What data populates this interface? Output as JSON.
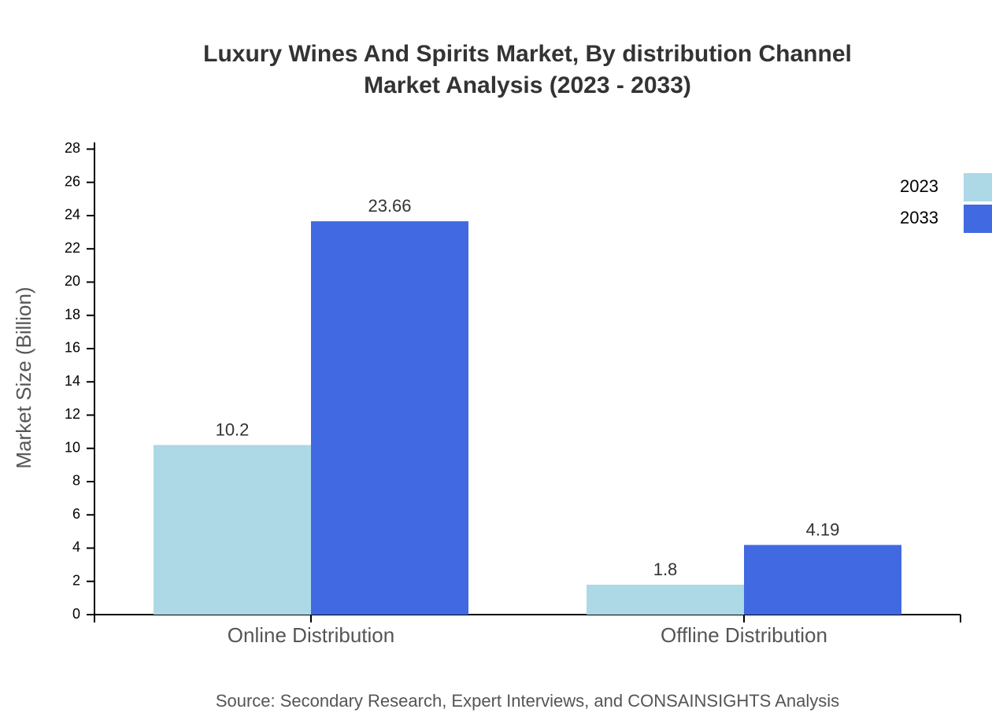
{
  "chart_data": {
    "type": "bar",
    "title": [
      "Luxury Wines And Spirits Market, By distribution Channel",
      "Market Analysis (2023 - 2033)"
    ],
    "y_label": "Market Size (Billion)",
    "source": "Source: Secondary Research, Expert Interviews, and CONSAINSIGHTS Analysis",
    "categories": [
      "Online Distribution",
      "Offline Distribution"
    ],
    "series": [
      {
        "name": "2023",
        "color": "#add8e6",
        "values": [
          10.2,
          1.8
        ]
      },
      {
        "name": "2033",
        "color": "#4169e1",
        "values": [
          23.66,
          4.19
        ]
      }
    ],
    "ylim": [
      0,
      28.4
    ],
    "yticks": [
      0,
      2,
      4,
      6,
      8,
      10,
      12,
      14,
      16,
      18,
      20,
      22,
      24,
      26,
      28
    ],
    "legend": "top-right",
    "grid": false
  }
}
